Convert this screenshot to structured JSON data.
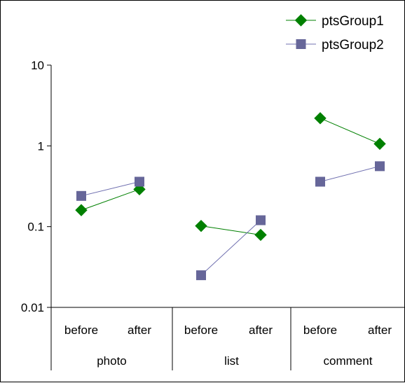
{
  "chart_data": {
    "type": "line",
    "title": "",
    "xlabel": "",
    "ylabel": "",
    "yscale": "log",
    "ylim": [
      0.01,
      10
    ],
    "yticks": [
      "10",
      "1",
      "0.1",
      "0.01"
    ],
    "groups": [
      {
        "label": "photo",
        "categories": [
          "before",
          "after"
        ]
      },
      {
        "label": "list",
        "categories": [
          "before",
          "after"
        ]
      },
      {
        "label": "comment",
        "categories": [
          "before",
          "after"
        ]
      }
    ],
    "series": [
      {
        "name": "ptsGroup1",
        "color": "#008000",
        "marker": "diamond",
        "segments": [
          [
            0.16,
            0.29
          ],
          [
            0.102,
            0.079
          ],
          [
            2.2,
            1.06
          ]
        ]
      },
      {
        "name": "ptsGroup2",
        "color": "#7070b0",
        "marker_color": "#666699",
        "marker": "square",
        "segments": [
          [
            0.24,
            0.36
          ],
          [
            0.025,
            0.12
          ],
          [
            0.36,
            0.56
          ]
        ]
      }
    ],
    "legend": "top-right",
    "grid": false
  }
}
